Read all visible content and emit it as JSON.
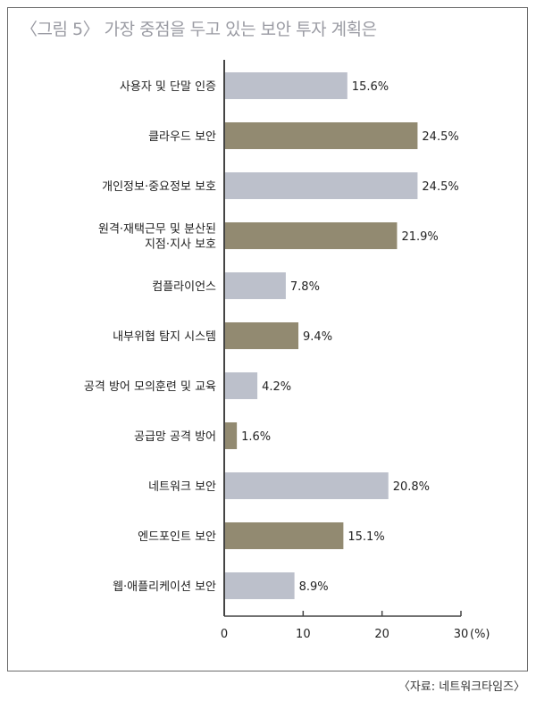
{
  "title": "〈그림 5〉 가장 중점을 두고 있는 보안 투자 계획은",
  "source": "〈자료: 네트워크타임즈〉",
  "colors": {
    "light": "#bcc0cb",
    "dark": "#928a71",
    "axis": "#444444"
  },
  "chart_data": {
    "type": "bar",
    "orientation": "horizontal",
    "categories": [
      "사용자 및 단말 인증",
      "클라우드 보안",
      "개인정보·중요정보 보호",
      "원격·재택근무 및 분산된\n지점·지사 보호",
      "컴플라이언스",
      "내부위협 탐지 시스템",
      "공격 방어 모의훈련 및 교육",
      "공급망 공격 방어",
      "네트워크 보안",
      "엔드포인트 보안",
      "웹·애플리케이션 보안"
    ],
    "values": [
      15.6,
      24.5,
      24.5,
      21.9,
      7.8,
      9.4,
      4.2,
      1.6,
      20.8,
      15.1,
      8.9
    ],
    "value_labels": [
      "15.6%",
      "24.5%",
      "24.5%",
      "21.9%",
      "7.8%",
      "9.4%",
      "4.2%",
      "1.6%",
      "20.8%",
      "15.1%",
      "8.9%"
    ],
    "bar_colors": [
      "light",
      "dark",
      "light",
      "dark",
      "light",
      "dark",
      "light",
      "dark",
      "light",
      "dark",
      "light"
    ],
    "xticks": [
      0,
      10,
      20,
      30
    ],
    "xtick_labels": [
      "0",
      "10",
      "20",
      "30"
    ],
    "xunit": "(%)",
    "xlim": [
      0,
      30
    ]
  }
}
